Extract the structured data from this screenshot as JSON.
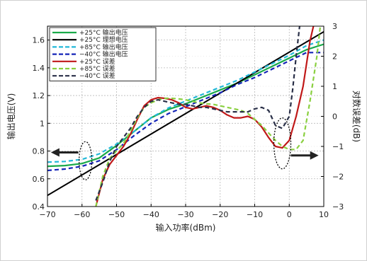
{
  "chart_data": {
    "type": "line",
    "xlabel": "输入功率(dBm)",
    "ylabel_left": "输出电压(V)",
    "ylabel_right": "对数误差(dB)",
    "xlim": [
      -70,
      10
    ],
    "ylim_left": [
      0.4,
      1.7
    ],
    "ylim_right": [
      -3,
      3
    ],
    "x_ticks": [
      -70,
      -60,
      -50,
      -40,
      -30,
      -20,
      -10,
      0,
      10
    ],
    "x_tick_labels": [
      "−70",
      "−60",
      "−50",
      "−40",
      "−30",
      "−20",
      "−10",
      "0",
      "10"
    ],
    "y_left_ticks": [
      0.4,
      0.6,
      0.8,
      1.0,
      1.2,
      1.4,
      1.6
    ],
    "y_left_tick_labels": [
      "0.4",
      "0.6",
      "0.8",
      "1",
      "1.2",
      "1.4",
      "1.6"
    ],
    "y_right_ticks": [
      -3,
      -2,
      -1,
      0,
      1,
      2,
      3
    ],
    "y_right_tick_labels": [
      "−3",
      "−2",
      "−1",
      "0",
      "1",
      "2",
      "3"
    ],
    "grid": true,
    "legend_position": "top-left",
    "series": [
      {
        "name": "+25°C  输出电压",
        "axis": "left",
        "color": "#1aaa4a",
        "dash": "solid",
        "x": [
          -70,
          -65,
          -60,
          -55,
          -50,
          -45,
          -40,
          -35,
          -30,
          -25,
          -20,
          -15,
          -10,
          -5,
          0,
          5,
          10
        ],
        "y": [
          0.69,
          0.695,
          0.71,
          0.75,
          0.84,
          0.94,
          1.04,
          1.1,
          1.14,
          1.19,
          1.24,
          1.29,
          1.35,
          1.41,
          1.47,
          1.53,
          1.57
        ]
      },
      {
        "name": "+25°C  理想电压",
        "axis": "left",
        "color": "#000000",
        "dash": "solid",
        "x": [
          -70,
          10
        ],
        "y": [
          0.48,
          1.66
        ]
      },
      {
        "name": "+85°C  输出电压",
        "axis": "left",
        "color": "#22b8d8",
        "dash": "dashed",
        "x": [
          -70,
          -65,
          -60,
          -55,
          -50,
          -45,
          -40,
          -35,
          -30,
          -25,
          -20,
          -15,
          -10,
          -5,
          0,
          5,
          10
        ],
        "y": [
          0.72,
          0.725,
          0.74,
          0.78,
          0.85,
          0.94,
          1.04,
          1.11,
          1.16,
          1.21,
          1.26,
          1.31,
          1.37,
          1.43,
          1.49,
          1.56,
          1.6
        ]
      },
      {
        "name": "−40°C  输出电压",
        "axis": "left",
        "color": "#1525b8",
        "dash": "dashed",
        "x": [
          -70,
          -65,
          -60,
          -55,
          -50,
          -45,
          -40,
          -35,
          -30,
          -25,
          -20,
          -15,
          -10,
          -5,
          0,
          5,
          10
        ],
        "y": [
          0.66,
          0.67,
          0.69,
          0.73,
          0.81,
          0.91,
          1.0,
          1.07,
          1.12,
          1.17,
          1.22,
          1.28,
          1.33,
          1.39,
          1.45,
          1.51,
          1.51
        ]
      },
      {
        "name": "+25°C  误差",
        "axis": "right",
        "color": "#c01818",
        "dash": "solid",
        "x": [
          -56,
          -54,
          -52,
          -50,
          -48,
          -46,
          -44,
          -42,
          -40,
          -38,
          -36,
          -34,
          -32,
          -30,
          -28,
          -26,
          -24,
          -22,
          -20,
          -18,
          -16,
          -14,
          -12,
          -10,
          -8,
          -6,
          -4,
          -2,
          0,
          2,
          4,
          6,
          7
        ],
        "y": [
          -3.0,
          -2.1,
          -1.6,
          -1.3,
          -1.0,
          -0.6,
          -0.1,
          0.35,
          0.55,
          0.62,
          0.6,
          0.55,
          0.45,
          0.3,
          0.25,
          0.3,
          0.35,
          0.3,
          0.2,
          0.05,
          -0.05,
          -0.05,
          0.0,
          -0.1,
          -0.35,
          -0.7,
          -1.0,
          -1.05,
          -0.8,
          0.0,
          1.0,
          2.5,
          3.0
        ]
      },
      {
        "name": "+85°C  误差",
        "axis": "right",
        "color": "#8ad040",
        "dash": "dashed",
        "x": [
          -56,
          -54,
          -52,
          -50,
          -48,
          -46,
          -44,
          -42,
          -40,
          -38,
          -36,
          -34,
          -32,
          -30,
          -28,
          -26,
          -24,
          -22,
          -20,
          -18,
          -16,
          -14,
          -12,
          -10,
          -8,
          -6,
          -4,
          -2,
          0,
          2,
          4,
          6,
          8,
          9
        ],
        "y": [
          -3.0,
          -2.0,
          -1.4,
          -1.15,
          -0.9,
          -0.5,
          -0.05,
          0.3,
          0.45,
          0.55,
          0.6,
          0.6,
          0.58,
          0.55,
          0.5,
          0.45,
          0.42,
          0.4,
          0.35,
          0.3,
          0.25,
          0.2,
          0.1,
          -0.1,
          -0.3,
          -0.55,
          -0.8,
          -1.0,
          -1.1,
          -1.1,
          -0.8,
          0.5,
          2.0,
          3.0
        ]
      },
      {
        "name": "−40°C  误差",
        "axis": "right",
        "color": "#2a3048",
        "dash": "dashed",
        "x": [
          -56,
          -54,
          -52,
          -50,
          -48,
          -46,
          -44,
          -42,
          -40,
          -38,
          -36,
          -34,
          -32,
          -30,
          -28,
          -26,
          -24,
          -22,
          -20,
          -18,
          -16,
          -14,
          -12,
          -10,
          -8,
          -6,
          -4,
          -2,
          0,
          1,
          2,
          3
        ],
        "y": [
          -2.8,
          -2.2,
          -1.5,
          -1.0,
          -0.7,
          -0.4,
          0.0,
          0.3,
          0.5,
          0.55,
          0.5,
          0.45,
          0.4,
          0.4,
          0.35,
          0.3,
          0.3,
          0.25,
          0.2,
          0.15,
          0.15,
          0.15,
          0.15,
          0.25,
          0.3,
          0.2,
          -0.3,
          -0.4,
          0.0,
          0.9,
          2.0,
          3.0
        ]
      }
    ]
  }
}
